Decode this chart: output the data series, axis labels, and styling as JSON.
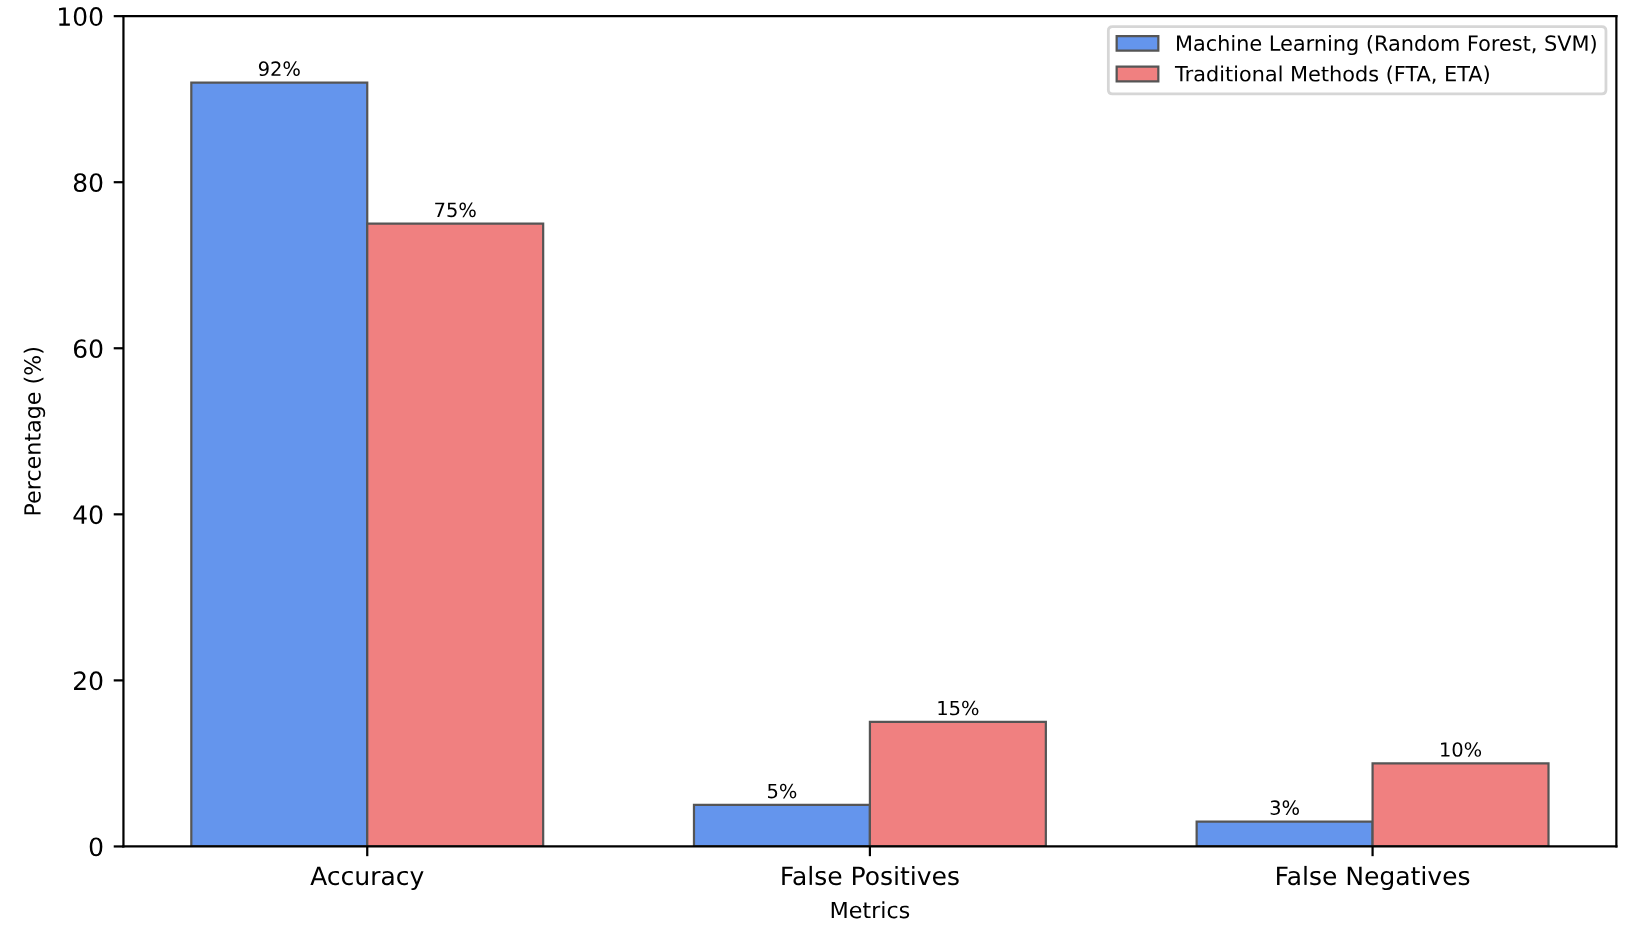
{
  "chart_data": {
    "type": "bar",
    "xlabel": "Metrics",
    "ylabel": "Percentage (%)",
    "categories": [
      "Accuracy",
      "False Positives",
      "False Negatives"
    ],
    "series": [
      {
        "name": "Machine Learning (Random Forest, SVM)",
        "color": "#6495ed",
        "values": [
          92,
          5,
          3
        ],
        "value_labels": [
          "92%",
          "5%",
          "3%"
        ]
      },
      {
        "name": "Traditional Methods (FTA, ETA)",
        "color": "#f08080",
        "values": [
          75,
          15,
          10
        ],
        "value_labels": [
          "75%",
          "15%",
          "10%"
        ]
      }
    ],
    "ylim": [
      0,
      100
    ],
    "yticks": [
      0,
      20,
      40,
      60,
      80,
      100
    ],
    "grid": false,
    "legend": "top right"
  }
}
